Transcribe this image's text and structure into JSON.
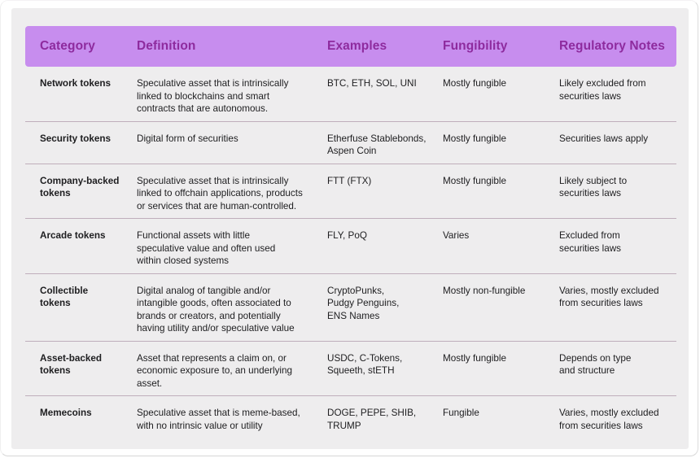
{
  "colors": {
    "page_background": "#ffffff",
    "card_background": "#eeedee",
    "header_background": "#c78dee",
    "header_text": "#8e2b9e",
    "body_text": "#1e1e20",
    "row_divider": "#bfaebb"
  },
  "chart_data": {
    "type": "table",
    "columns": [
      "Category",
      "Definition",
      "Examples",
      "Fungibility",
      "Regulatory Notes"
    ],
    "rows": [
      {
        "category": "Network tokens",
        "definition": "Speculative asset that is intrinsically\nlinked to blockchains and smart\ncontracts that are autonomous.",
        "examples": "BTC, ETH, SOL, UNI",
        "fungibility": "Mostly fungible",
        "regulatory_notes": "Likely excluded from\nsecurities laws"
      },
      {
        "category": "Security tokens",
        "definition": "Digital form of securities",
        "examples": "Etherfuse Stablebonds,\nAspen Coin",
        "fungibility": "Mostly fungible",
        "regulatory_notes": "Securities laws apply"
      },
      {
        "category": "Company-backed\ntokens",
        "definition": "Speculative asset that is intrinsically\nlinked to offchain applications, products\nor services that are human-controlled.",
        "examples": "FTT (FTX)",
        "fungibility": "Mostly fungible",
        "regulatory_notes": "Likely subject to\nsecurities laws"
      },
      {
        "category": "Arcade tokens",
        "definition": "Functional assets with little\nspeculative value and often used\nwithin closed systems",
        "examples": "FLY, PoQ",
        "fungibility": "Varies",
        "regulatory_notes": "Excluded from\nsecurities laws"
      },
      {
        "category": "Collectible\ntokens",
        "definition": "Digital analog of tangible and/or\nintangible goods, often associated to\nbrands or creators, and potentially\nhaving utility and/or speculative value",
        "examples": "CryptoPunks,\nPudgy Penguins,\nENS Names",
        "fungibility": "Mostly non-fungible",
        "regulatory_notes": "Varies, mostly excluded\nfrom securities laws"
      },
      {
        "category": "Asset-backed\ntokens",
        "definition": "Asset that represents a claim on, or\neconomic exposure to, an underlying\nasset.",
        "examples": "USDC, C-Tokens,\nSqueeth, stETH",
        "fungibility": "Mostly fungible",
        "regulatory_notes": "Depends on type\nand structure"
      },
      {
        "category": "Memecoins",
        "definition": "Speculative asset that is meme-based,\nwith no intrinsic value or utility",
        "examples": "DOGE, PEPE, SHIB,\nTRUMP",
        "fungibility": "Fungible",
        "regulatory_notes": "Varies, mostly excluded\nfrom securities laws"
      }
    ]
  }
}
